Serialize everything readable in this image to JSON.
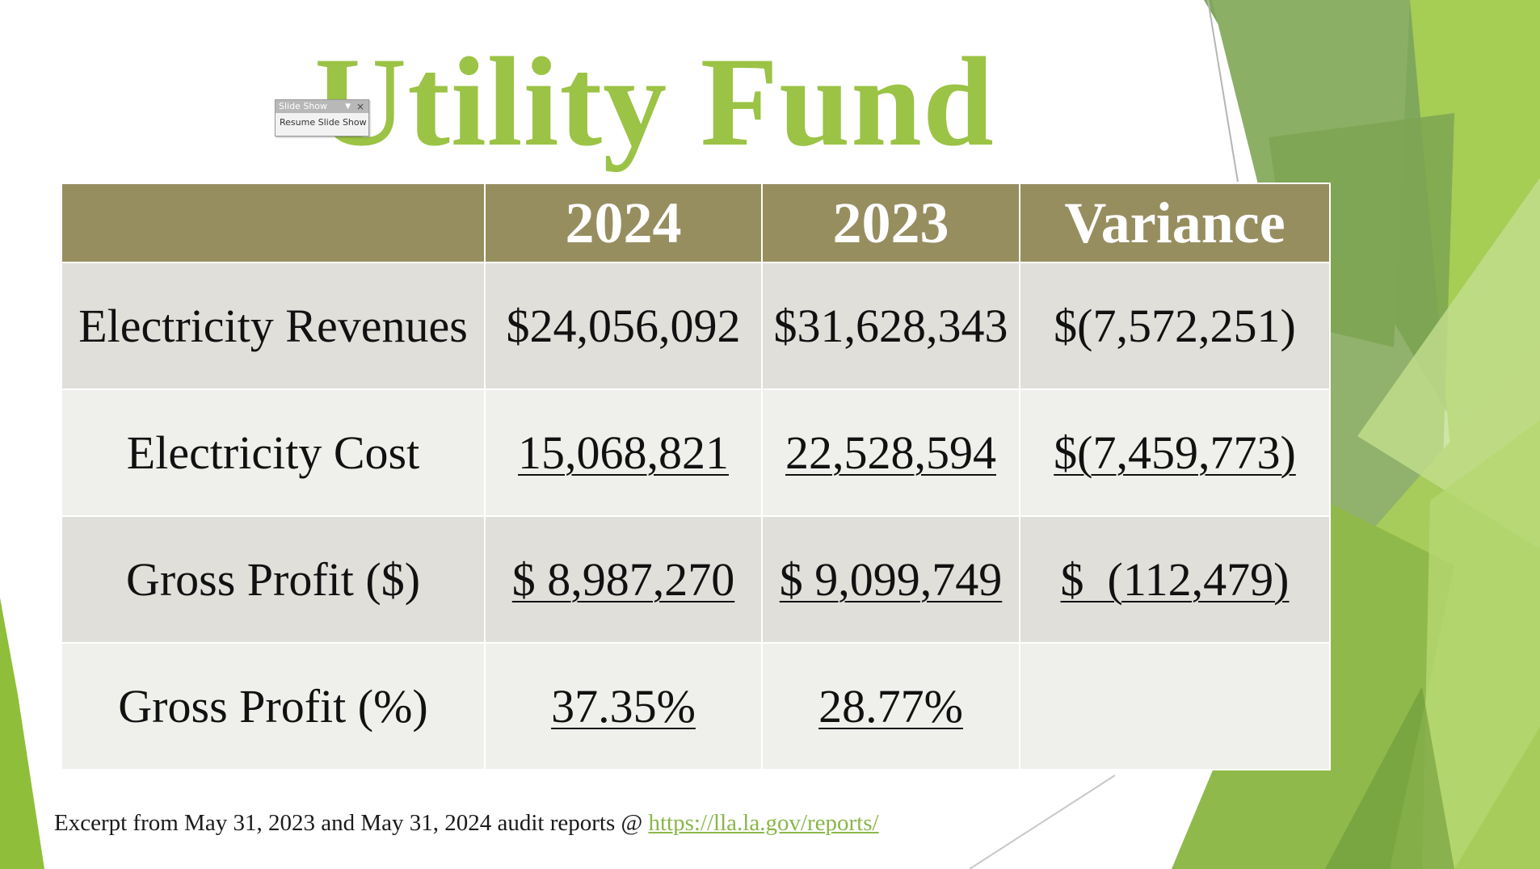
{
  "slide": {
    "title": "Utility Fund"
  },
  "table": {
    "headers": [
      "",
      "2024",
      "2023",
      "Variance"
    ],
    "rows": [
      {
        "label": "Electricity Revenues",
        "y2024": "$24,056,092",
        "y2023": "$31,628,343",
        "variance": "$(7,572,251)",
        "underlined": false
      },
      {
        "label": "Electricity Cost",
        "y2024": "15,068,821",
        "y2023": "22,528,594",
        "variance": "$(7,459,773)",
        "underlined": true
      },
      {
        "label": "Gross Profit ($)",
        "y2024": "$ 8,987,270",
        "y2023": "$ 9,099,749",
        "variance": "$  (112,479)",
        "underlined": true
      },
      {
        "label": "Gross Profit (%)",
        "y2024": "37.35%",
        "y2023": "28.77%",
        "variance": "",
        "underlined": true
      }
    ]
  },
  "footer": {
    "text": "Excerpt from May 31, 2023 and May 31, 2024 audit reports @ ",
    "link": "https://lla.la.gov/reports/"
  },
  "slideshow_toolbar": {
    "title": "Slide Show",
    "resume_label": "Resume Slide Show",
    "close_icon": "close-icon",
    "dropdown_icon": "chevron-down-icon"
  },
  "colors": {
    "title": "#9bc345",
    "header_bg": "#978e60",
    "row_dark": "#e0dfda",
    "row_light": "#efefec",
    "link": "#8bb64a"
  }
}
